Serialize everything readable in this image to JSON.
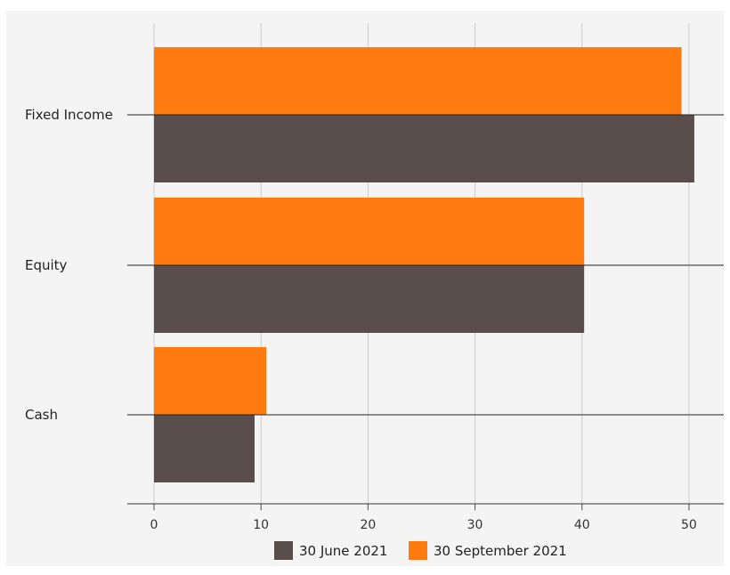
{
  "chart_data": {
    "type": "bar",
    "orientation": "horizontal",
    "categories": [
      "Fixed Income",
      "Equity",
      "Cash"
    ],
    "series": [
      {
        "name": "30 June 2021",
        "values": [
          50.5,
          40.2,
          9.4
        ],
        "color": "#5a4e4c"
      },
      {
        "name": "30 September 2021",
        "values": [
          49.3,
          40.2,
          10.5
        ],
        "color": "#ff7a0f"
      }
    ],
    "xlim": [
      0,
      53.5
    ],
    "xticks": [
      0,
      10,
      20,
      30,
      40,
      50
    ],
    "grid": true,
    "legend": "bottom-center",
    "title": "",
    "xlabel": "",
    "ylabel": ""
  }
}
